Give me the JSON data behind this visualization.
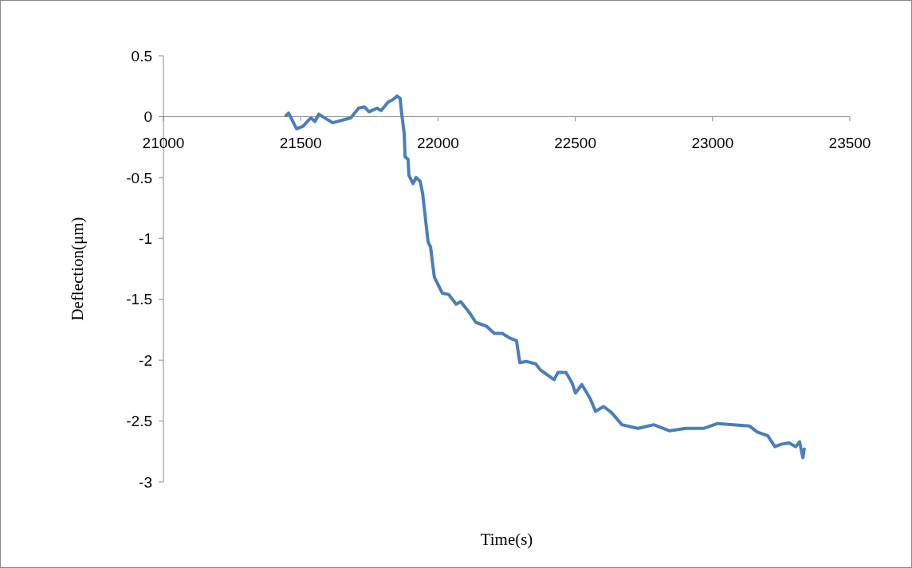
{
  "chart_data": {
    "type": "line",
    "xlabel": "Time(s)",
    "ylabel": "Deflection(μm)",
    "xlim": [
      21000,
      23500
    ],
    "xticks": [
      21000,
      21500,
      22000,
      22500,
      23000,
      23500
    ],
    "ylim": [
      -3,
      0.5
    ],
    "yticks": [
      0.5,
      0,
      -0.5,
      -1,
      -1.5,
      -2,
      -2.5,
      -3
    ],
    "grid": false,
    "marker": "none",
    "line_style": "solid",
    "x": [
      21447,
      21456,
      21485,
      21508,
      21537,
      21552,
      21566,
      21616,
      21682,
      21711,
      21732,
      21749,
      21778,
      21793,
      21819,
      21836,
      21851,
      21862,
      21868,
      21877,
      21880,
      21891,
      21894,
      21909,
      21920,
      21935,
      21944,
      21964,
      21973,
      21981,
      21987,
      22016,
      22039,
      22066,
      22083,
      22118,
      22138,
      22176,
      22205,
      22234,
      22263,
      22286,
      22298,
      22321,
      22356,
      22373,
      22423,
      22437,
      22466,
      22487,
      22501,
      22524,
      22553,
      22574,
      22603,
      22632,
      22670,
      22728,
      22786,
      22844,
      22902,
      22969,
      23018,
      23076,
      23134,
      23163,
      23201,
      23227,
      23250,
      23279,
      23303,
      23317,
      23329,
      23334
    ],
    "series": [
      {
        "color": "#4a7ebb",
        "values": [
          0.01,
          0.03,
          -0.1,
          -0.08,
          -0.01,
          -0.04,
          0.02,
          -0.05,
          -0.01,
          0.07,
          0.08,
          0.04,
          0.07,
          0.05,
          0.12,
          0.14,
          0.17,
          0.15,
          0.02,
          -0.14,
          -0.33,
          -0.35,
          -0.48,
          -0.55,
          -0.5,
          -0.53,
          -0.63,
          -1.03,
          -1.07,
          -1.22,
          -1.32,
          -1.45,
          -1.46,
          -1.54,
          -1.52,
          -1.62,
          -1.69,
          -1.72,
          -1.78,
          -1.78,
          -1.82,
          -1.84,
          -2.02,
          -2.01,
          -2.03,
          -2.08,
          -2.16,
          -2.1,
          -2.1,
          -2.18,
          -2.27,
          -2.2,
          -2.31,
          -2.42,
          -2.38,
          -2.43,
          -2.53,
          -2.56,
          -2.53,
          -2.58,
          -2.56,
          -2.56,
          -2.52,
          -2.53,
          -2.54,
          -2.59,
          -2.62,
          -2.71,
          -2.69,
          -2.68,
          -2.71,
          -2.67,
          -2.8,
          -2.73
        ]
      }
    ]
  }
}
